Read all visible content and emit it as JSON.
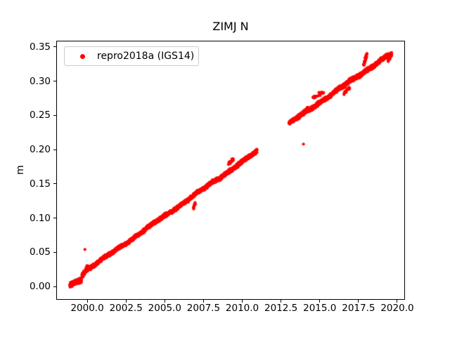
{
  "chart_data": {
    "type": "scatter",
    "title": "ZIMJ N",
    "xlabel": "",
    "ylabel": "m",
    "grid": false,
    "legend": {
      "location": "upper left",
      "label": "repro2018a (IGS14)",
      "marker_color": "#ff0000",
      "border_color": "#cccccc",
      "face_color": "#ffffff"
    },
    "axes": {
      "xlim": [
        1998.0,
        2020.5
      ],
      "ylim": [
        -0.0195,
        0.3595
      ],
      "xticks": [
        {
          "v": 2000.0,
          "label": "2000.0"
        },
        {
          "v": 2002.5,
          "label": "2002.5"
        },
        {
          "v": 2005.0,
          "label": "2005.0"
        },
        {
          "v": 2007.5,
          "label": "2007.5"
        },
        {
          "v": 2010.0,
          "label": "2010.0"
        },
        {
          "v": 2012.5,
          "label": "2012.5"
        },
        {
          "v": 2015.0,
          "label": "2015.0"
        },
        {
          "v": 2017.5,
          "label": "2017.5"
        },
        {
          "v": 2020.0,
          "label": "2020.0"
        }
      ],
      "yticks": [
        {
          "v": 0.0,
          "label": "0.00"
        },
        {
          "v": 0.05,
          "label": "0.05"
        },
        {
          "v": 0.1,
          "label": "0.10"
        },
        {
          "v": 0.15,
          "label": "0.15"
        },
        {
          "v": 0.2,
          "label": "0.20"
        },
        {
          "v": 0.25,
          "label": "0.25"
        },
        {
          "v": 0.3,
          "label": "0.30"
        },
        {
          "v": 0.35,
          "label": "0.35"
        }
      ]
    },
    "series": [
      {
        "name": "repro2018a (IGS14)",
        "color": "#ff0000",
        "marker": "dot",
        "marker_radius_px": 2.1,
        "seed": 42,
        "trend_m_per_year": 0.0158,
        "wander": [
          {
            "amp": 0.0009,
            "period": 3.1,
            "phase": 0.7
          },
          {
            "amp": 0.0006,
            "period": 1.0,
            "phase": 0.2
          }
        ],
        "segments": [
          {
            "t0": 1998.88,
            "t1": 1999.62,
            "v0": 0.002,
            "v1": 0.012,
            "per_year": 330,
            "noise": 0.0016
          },
          {
            "t0": 1999.66,
            "t1": 2000.08,
            "v0": 0.017,
            "v1": 0.029,
            "per_year": 150,
            "noise": 0.002
          },
          {
            "t0": 2000.12,
            "t1": 2010.95,
            "v0": 0.0265,
            "v1": 0.1975,
            "per_year": 330,
            "noise": 0.0012
          },
          {
            "t0": 2013.02,
            "t1": 2019.42,
            "v0": 0.2385,
            "v1": 0.3385,
            "per_year": 330,
            "noise": 0.0013
          }
        ],
        "clusters": [
          {
            "t0": 1999.9,
            "t1": 2000.05,
            "v0": 0.0235,
            "v1": 0.03,
            "n": 18,
            "spread": 0.0012
          },
          {
            "t0": 2006.84,
            "t1": 2006.97,
            "v0": 0.115,
            "v1": 0.1225,
            "n": 14,
            "spread": 0.001
          },
          {
            "t0": 2009.12,
            "t1": 2009.42,
            "v0": 0.18,
            "v1": 0.1865,
            "n": 30,
            "spread": 0.0012
          },
          {
            "t0": 2013.88,
            "t1": 2014.3,
            "v0": 0.253,
            "v1": 0.2625,
            "n": 30,
            "spread": 0.0012
          },
          {
            "t0": 2014.55,
            "t1": 2015.25,
            "v0": 0.276,
            "v1": 0.285,
            "n": 20,
            "spread": 0.0013
          },
          {
            "t0": 2016.55,
            "t1": 2016.95,
            "v0": 0.282,
            "v1": 0.291,
            "n": 22,
            "spread": 0.0013
          },
          {
            "t0": 2017.82,
            "t1": 2018.06,
            "v0": 0.3235,
            "v1": 0.3405,
            "n": 38,
            "spread": 0.0013
          },
          {
            "t0": 2019.42,
            "t1": 2019.63,
            "v0": 0.331,
            "v1": 0.341,
            "n": 85,
            "spread": 0.0015
          }
        ],
        "outliers": [
          {
            "t": 1999.85,
            "v": 0.0546
          },
          {
            "t": 2013.95,
            "v": 0.2085
          }
        ]
      }
    ]
  }
}
